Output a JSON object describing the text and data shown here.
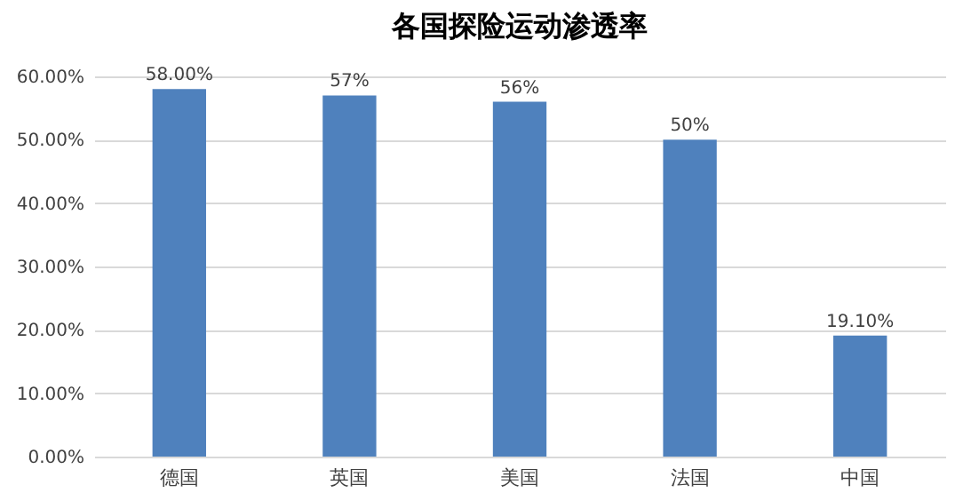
{
  "chart_data": {
    "type": "bar",
    "title": "各国探险运动渗透率",
    "categories": [
      "德国",
      "英国",
      "美国",
      "法国",
      "中国"
    ],
    "values": [
      58,
      57,
      56,
      50,
      19.1
    ],
    "value_labels": [
      "58.00%",
      "57%",
      "56%",
      "50%",
      "19.10%"
    ],
    "color": "#4f81bd",
    "ylim": [
      0,
      60
    ],
    "yticks": [
      {
        "value": 0,
        "label": "0.00%"
      },
      {
        "value": 10,
        "label": "10.00%"
      },
      {
        "value": 20,
        "label": "20.00%"
      },
      {
        "value": 30,
        "label": "30.00%"
      },
      {
        "value": 40,
        "label": "40.00%"
      },
      {
        "value": 50,
        "label": "50.00%"
      },
      {
        "value": 60,
        "label": "60.00%"
      }
    ],
    "grid": true
  }
}
